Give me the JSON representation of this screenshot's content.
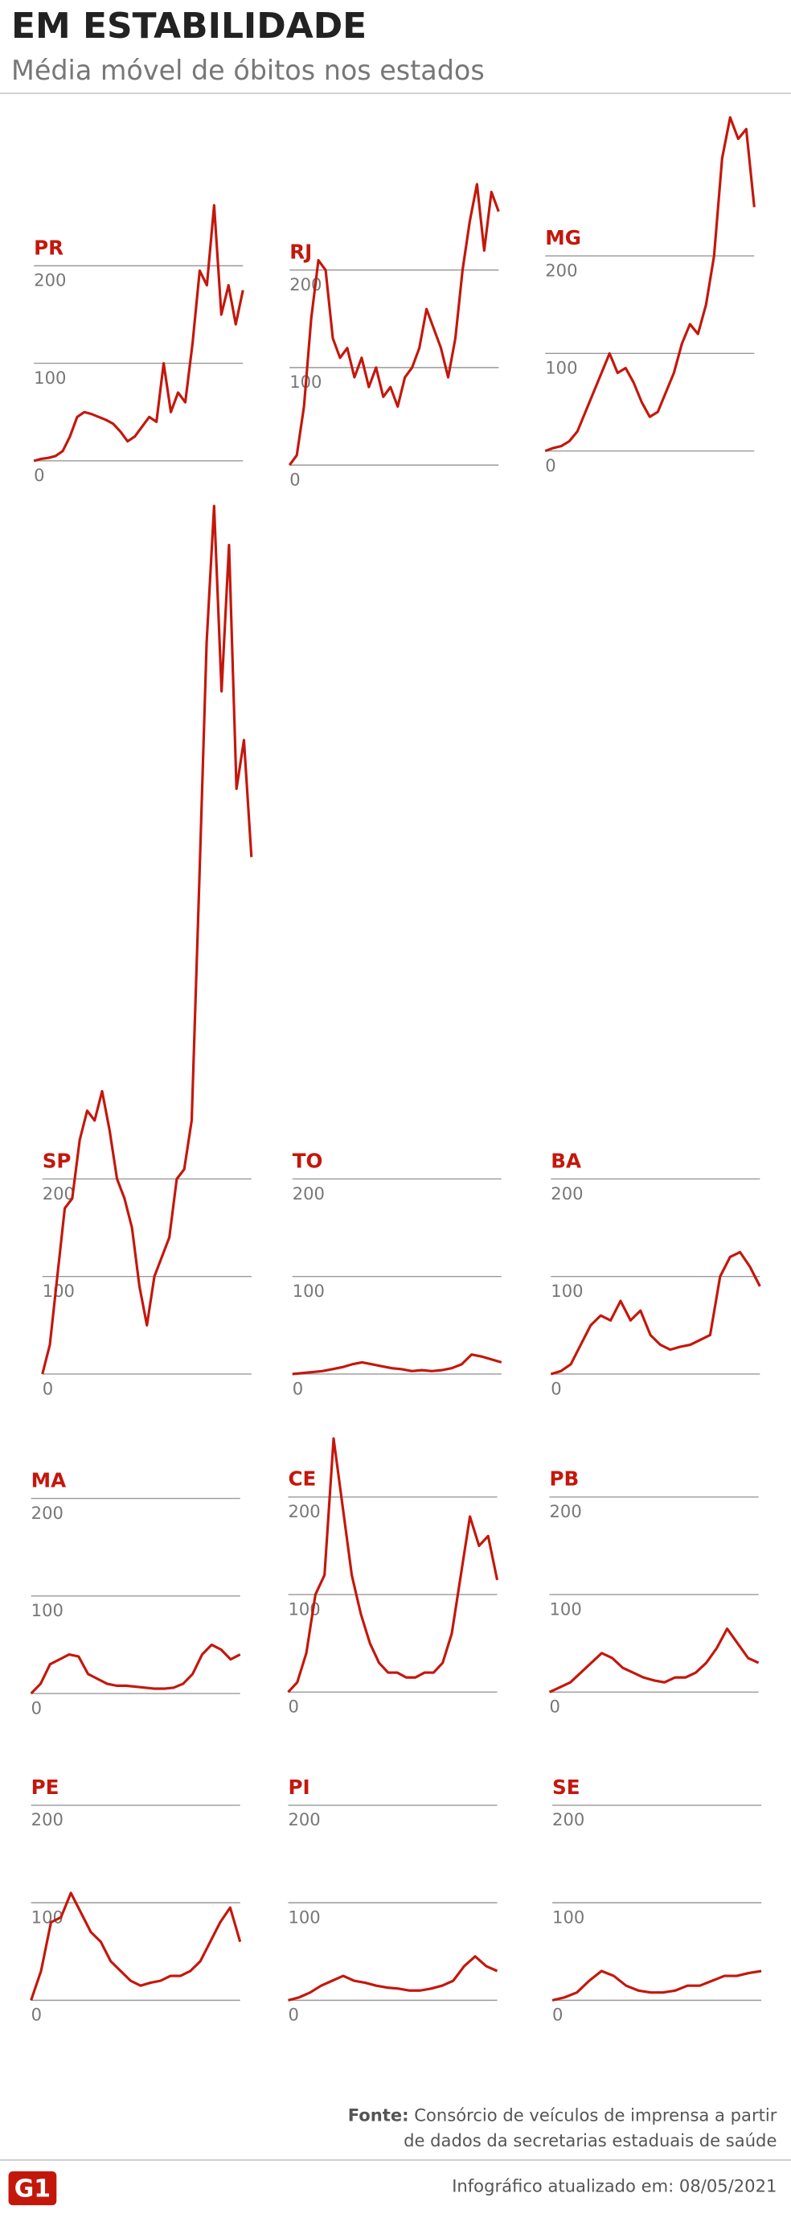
{
  "title": "EM ESTABILIDADE",
  "subtitle": "Média móvel de óbitos nos estados",
  "source_label": "Fonte:",
  "source": [
    "Consórcio de veículos de imprensa a partir",
    "de dados da secretarias estaduais de saúde"
  ],
  "updated": "Infográfico atualizado em: 08/05/2021",
  "logo": "G1",
  "chart_data": [
    {
      "type": "line",
      "title": "PR",
      "color": "#c4170c",
      "ylim": [
        0,
        270
      ],
      "yticks": [
        0,
        100,
        200
      ],
      "grid": true,
      "values": [
        0,
        2,
        3,
        5,
        10,
        25,
        45,
        50,
        48,
        45,
        42,
        38,
        30,
        20,
        25,
        35,
        45,
        40,
        100,
        50,
        70,
        60,
        120,
        195,
        180,
        262,
        150,
        180,
        140,
        175
      ]
    },
    {
      "type": "line",
      "title": "RJ",
      "color": "#c4170c",
      "ylim": [
        0,
        300
      ],
      "yticks": [
        0,
        100,
        200
      ],
      "grid": true,
      "values": [
        0,
        10,
        60,
        150,
        210,
        200,
        130,
        110,
        120,
        90,
        110,
        80,
        100,
        70,
        80,
        60,
        90,
        100,
        120,
        160,
        140,
        120,
        90,
        130,
        200,
        250,
        288,
        220,
        280,
        260
      ]
    },
    {
      "type": "line",
      "title": "MG",
      "color": "#c4170c",
      "ylim": [
        0,
        350
      ],
      "yticks": [
        0,
        100,
        200
      ],
      "grid": true,
      "values": [
        0,
        3,
        5,
        10,
        20,
        40,
        60,
        80,
        100,
        80,
        85,
        70,
        50,
        35,
        40,
        60,
        80,
        110,
        130,
        120,
        150,
        200,
        300,
        342,
        320,
        330,
        250
      ]
    },
    {
      "type": "line",
      "title": "SP",
      "color": "#c4170c",
      "ylim": [
        0,
        900
      ],
      "yticks": [
        0,
        100,
        200
      ],
      "grid": true,
      "values": [
        0,
        30,
        100,
        170,
        180,
        240,
        270,
        260,
        290,
        250,
        200,
        180,
        150,
        90,
        50,
        100,
        120,
        140,
        200,
        210,
        260,
        500,
        750,
        890,
        700,
        850,
        600,
        650,
        530
      ]
    },
    {
      "type": "line",
      "title": "TO",
      "color": "#c4170c",
      "ylim": [
        0,
        250
      ],
      "yticks": [
        0,
        100,
        200
      ],
      "grid": true,
      "values": [
        0,
        1,
        2,
        3,
        5,
        7,
        10,
        12,
        10,
        8,
        6,
        5,
        3,
        4,
        3,
        4,
        6,
        10,
        20,
        18,
        15,
        12
      ]
    },
    {
      "type": "line",
      "title": "BA",
      "color": "#c4170c",
      "ylim": [
        0,
        250
      ],
      "yticks": [
        0,
        100,
        200
      ],
      "grid": true,
      "values": [
        0,
        3,
        10,
        30,
        50,
        60,
        55,
        75,
        55,
        65,
        40,
        30,
        25,
        28,
        30,
        35,
        40,
        100,
        120,
        125,
        110,
        90
      ]
    },
    {
      "type": "line",
      "title": "MA",
      "color": "#c4170c",
      "ylim": [
        0,
        250
      ],
      "yticks": [
        0,
        100,
        200
      ],
      "grid": true,
      "values": [
        0,
        10,
        30,
        35,
        40,
        38,
        20,
        15,
        10,
        8,
        8,
        7,
        6,
        5,
        5,
        6,
        10,
        20,
        40,
        50,
        45,
        35,
        40
      ]
    },
    {
      "type": "line",
      "title": "CE",
      "color": "#c4170c",
      "ylim": [
        0,
        270
      ],
      "yticks": [
        0,
        100,
        200
      ],
      "grid": true,
      "values": [
        0,
        10,
        40,
        100,
        120,
        260,
        190,
        120,
        80,
        50,
        30,
        20,
        20,
        15,
        15,
        20,
        20,
        30,
        60,
        120,
        180,
        150,
        160,
        115
      ]
    },
    {
      "type": "line",
      "title": "PB",
      "color": "#c4170c",
      "ylim": [
        0,
        250
      ],
      "yticks": [
        0,
        100,
        200
      ],
      "grid": true,
      "values": [
        0,
        5,
        10,
        20,
        30,
        40,
        35,
        25,
        20,
        15,
        12,
        10,
        15,
        15,
        20,
        30,
        45,
        65,
        50,
        35,
        30
      ]
    },
    {
      "type": "line",
      "title": "PE",
      "color": "#c4170c",
      "ylim": [
        0,
        250
      ],
      "yticks": [
        0,
        100,
        200
      ],
      "grid": true,
      "values": [
        0,
        30,
        80,
        85,
        110,
        90,
        70,
        60,
        40,
        30,
        20,
        15,
        18,
        20,
        25,
        25,
        30,
        40,
        60,
        80,
        95,
        60
      ]
    },
    {
      "type": "line",
      "title": "PI",
      "color": "#c4170c",
      "ylim": [
        0,
        250
      ],
      "yticks": [
        0,
        100,
        200
      ],
      "grid": true,
      "values": [
        0,
        3,
        8,
        15,
        20,
        25,
        20,
        18,
        15,
        13,
        12,
        10,
        10,
        12,
        15,
        20,
        35,
        45,
        35,
        30
      ]
    },
    {
      "type": "line",
      "title": "SE",
      "color": "#c4170c",
      "ylim": [
        0,
        250
      ],
      "yticks": [
        0,
        100,
        200
      ],
      "grid": true,
      "values": [
        0,
        3,
        8,
        20,
        30,
        25,
        15,
        10,
        8,
        8,
        10,
        15,
        15,
        20,
        25,
        25,
        28,
        30
      ]
    }
  ]
}
